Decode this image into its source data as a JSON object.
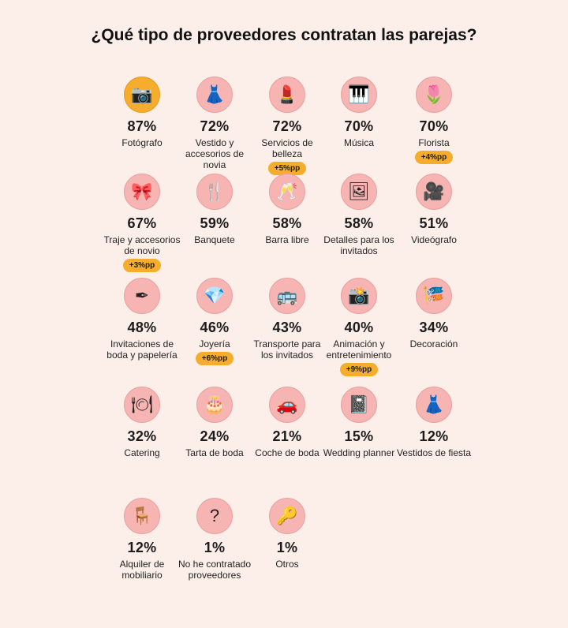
{
  "title": "¿Qué tipo de proveedores contratan las parejas?",
  "colors": {
    "background": "#fcefe9",
    "icon_circle": "#f6b4b3",
    "highlight": "#f6ad2e"
  },
  "chart_data": {
    "type": "table",
    "title": "¿Qué tipo de proveedores contratan las parejas?",
    "unit": "%",
    "items": [
      {
        "label": "Fotógrafo",
        "value": 87,
        "pct": "87%",
        "icon": "camera-icon",
        "glyph": "📷",
        "highlight": true
      },
      {
        "label": "Vestido y accesorios de novia",
        "value": 72,
        "pct": "72%",
        "icon": "dress-icon",
        "glyph": "👗"
      },
      {
        "label": "Servicios de belleza",
        "value": 72,
        "pct": "72%",
        "icon": "mirror-lipstick-icon",
        "glyph": "💄",
        "badge": "+5%pp"
      },
      {
        "label": "Música",
        "value": 70,
        "pct": "70%",
        "icon": "piano-keys-icon",
        "glyph": "🎹"
      },
      {
        "label": "Florista",
        "value": 70,
        "pct": "70%",
        "icon": "tulip-icon",
        "glyph": "🌷",
        "badge": "+4%pp"
      },
      {
        "label": "Traje y accesorios de novio",
        "value": 67,
        "pct": "67%",
        "icon": "bow-tie-icon",
        "glyph": "🎀",
        "badge": "+3%pp"
      },
      {
        "label": "Banquete",
        "value": 59,
        "pct": "59%",
        "icon": "plate-cutlery-icon",
        "glyph": "🍴"
      },
      {
        "label": "Barra libre",
        "value": 58,
        "pct": "58%",
        "icon": "champagne-glasses-icon",
        "glyph": "🥂"
      },
      {
        "label": "Detalles para los invitados",
        "value": 58,
        "pct": "58%",
        "icon": "photos-gift-icon",
        "glyph": "🖼"
      },
      {
        "label": "Videógrafo",
        "value": 51,
        "pct": "51%",
        "icon": "video-camera-icon",
        "glyph": "🎥"
      },
      {
        "label": "Invitaciones de boda y papelería",
        "value": 48,
        "pct": "48%",
        "icon": "invitation-pen-icon",
        "glyph": "✒"
      },
      {
        "label": "Joyería",
        "value": 46,
        "pct": "46%",
        "icon": "necklace-icon",
        "glyph": "💎",
        "badge": "+6%pp"
      },
      {
        "label": "Transporte para los invitados",
        "value": 43,
        "pct": "43%",
        "icon": "bus-icon",
        "glyph": "🚌"
      },
      {
        "label": "Animación y entretenimiento",
        "value": 40,
        "pct": "40%",
        "icon": "photo-booth-icon",
        "glyph": "📸",
        "badge": "+9%pp"
      },
      {
        "label": "Decoración",
        "value": 34,
        "pct": "34%",
        "icon": "bunting-icon",
        "glyph": "🎏"
      },
      {
        "label": "Catering",
        "value": 32,
        "pct": "32%",
        "icon": "cloche-icon",
        "glyph": "🍽"
      },
      {
        "label": "Tarta de boda",
        "value": 24,
        "pct": "24%",
        "icon": "cake-icon",
        "glyph": "🎂"
      },
      {
        "label": "Coche de boda",
        "value": 21,
        "pct": "21%",
        "icon": "car-icon",
        "glyph": "🚗"
      },
      {
        "label": "Wedding planner",
        "value": 15,
        "pct": "15%",
        "icon": "planner-notebook-icon",
        "glyph": "📓"
      },
      {
        "label": "Vestidos de fiesta",
        "value": 12,
        "pct": "12%",
        "icon": "party-dress-icon",
        "glyph": "👗"
      },
      {
        "label": "Alquiler de mobiliario",
        "value": 12,
        "pct": "12%",
        "icon": "chair-icon",
        "glyph": "🪑"
      },
      {
        "label": "No he contratado proveedores",
        "value": 1,
        "pct": "1%",
        "icon": "question-icon",
        "glyph": "?"
      },
      {
        "label": "Otros",
        "value": 1,
        "pct": "1%",
        "icon": "key-icon",
        "glyph": "🔑"
      }
    ]
  }
}
